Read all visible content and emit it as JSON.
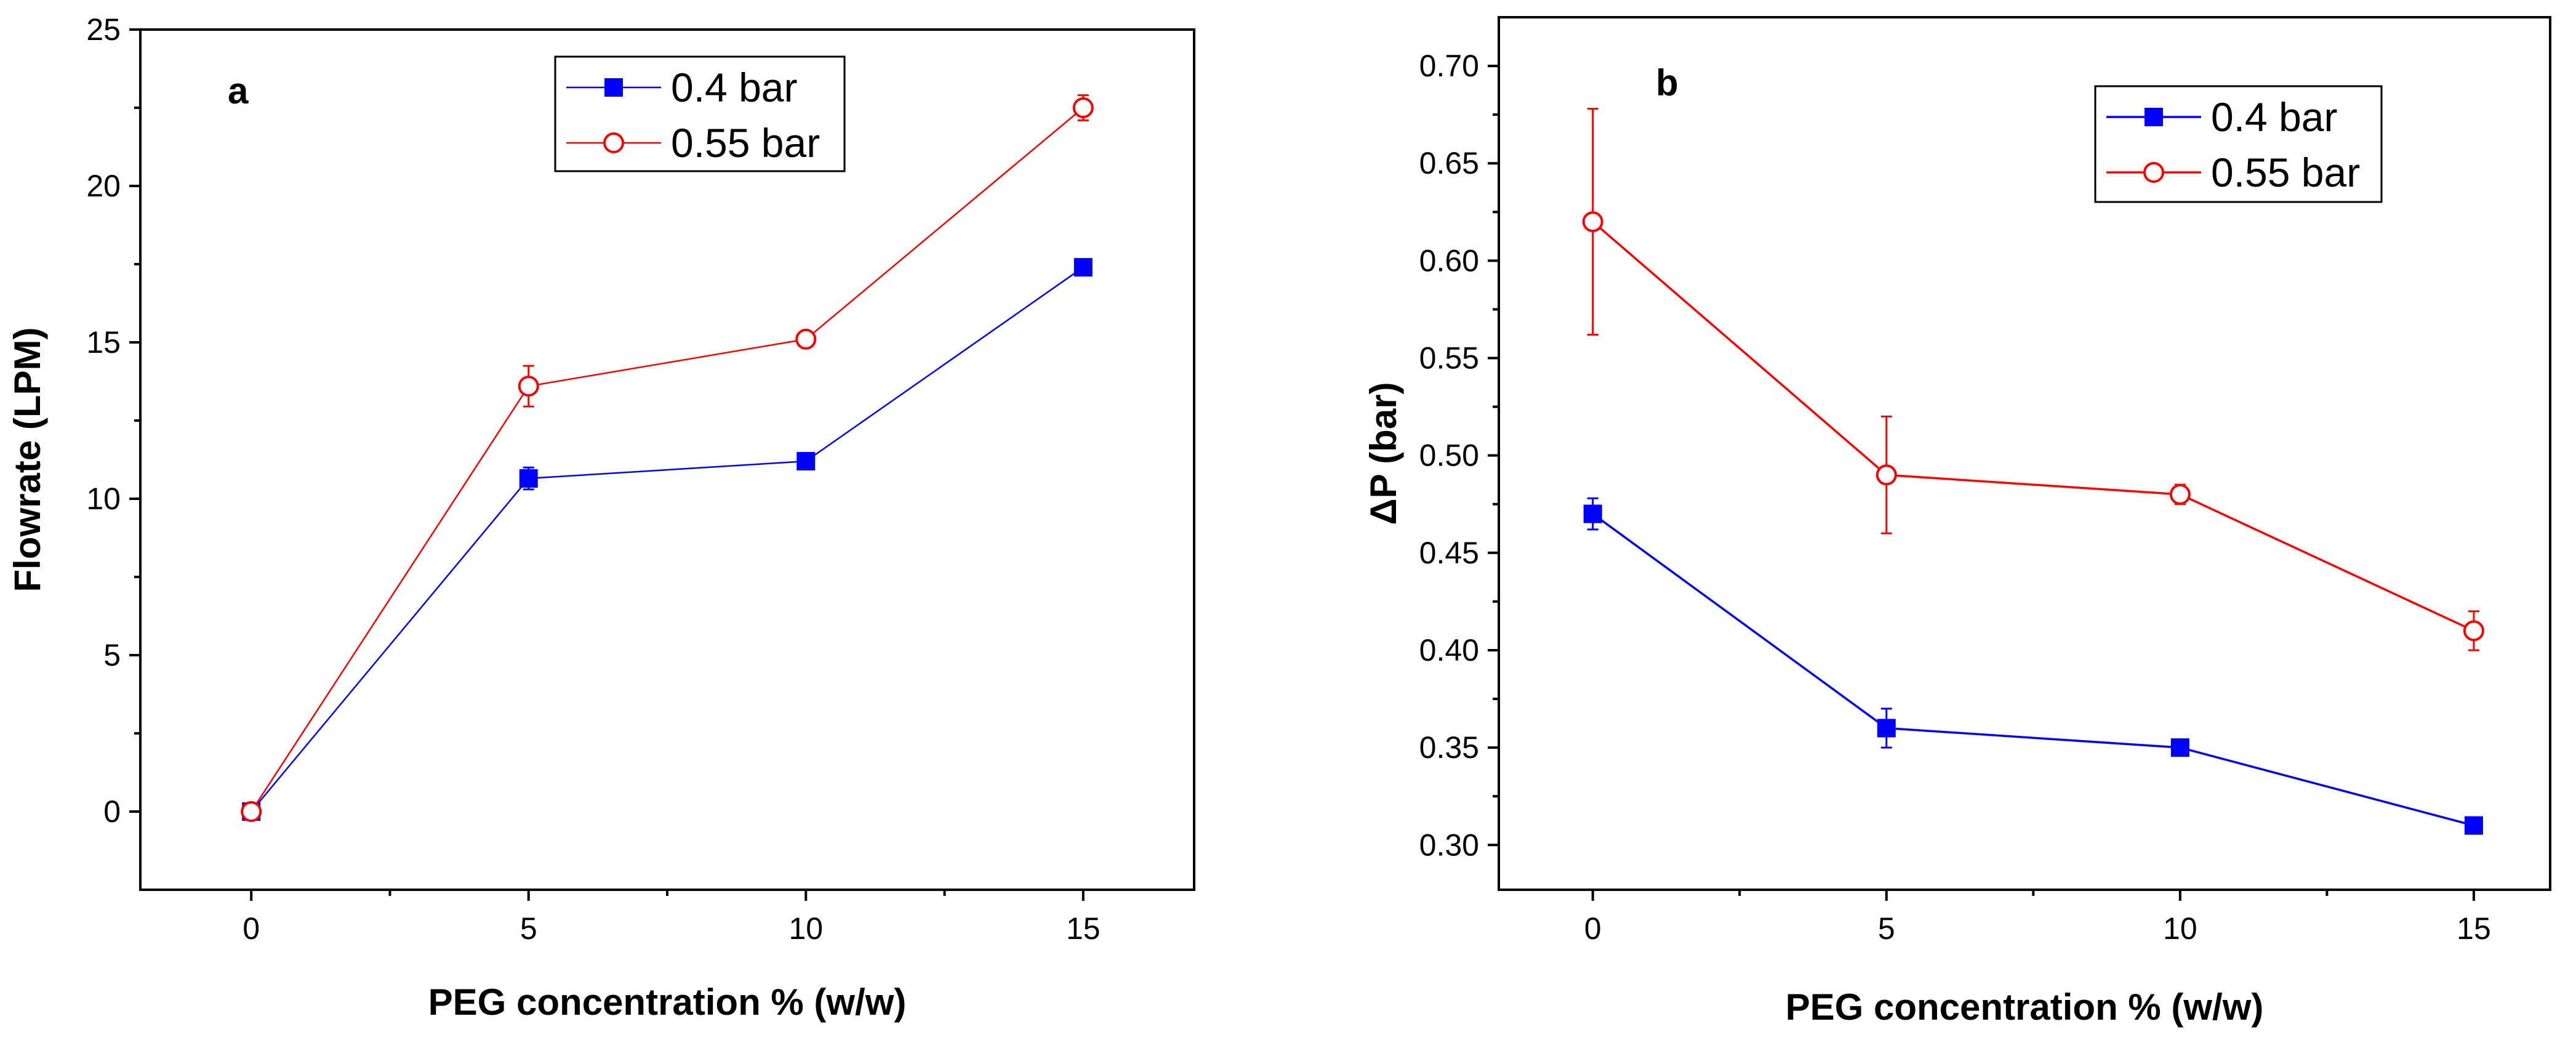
{
  "chart_data": [
    {
      "type": "line",
      "panel_label": "a",
      "xlabel": "PEG concentration % (w/w)",
      "ylabel": "Flowrate (LPM)",
      "x": [
        0,
        5,
        10,
        15
      ],
      "x_ticks": [
        "0",
        "5",
        "10",
        "15"
      ],
      "xlim": [
        -2,
        17
      ],
      "ylim": [
        -2.5,
        25
      ],
      "y_ticks": [
        "0",
        "5",
        "10",
        "15",
        "20",
        "25"
      ],
      "legend_position": "top-center",
      "series": [
        {
          "name": "0.4 bar",
          "values": [
            0,
            10.65,
            11.2,
            17.4
          ],
          "errors": [
            0.15,
            0.35,
            0.15,
            0.15
          ],
          "color": "#0000ff",
          "marker": "filled-square"
        },
        {
          "name": "0.55 bar",
          "values": [
            0,
            13.6,
            15.1,
            22.5
          ],
          "errors": [
            0.15,
            0.65,
            0.15,
            0.4
          ],
          "color": "#ff0000",
          "marker": "open-circle"
        }
      ]
    },
    {
      "type": "line",
      "panel_label": "b",
      "xlabel": "PEG concentration % (w/w)",
      "ylabel": "ΔP (bar)",
      "x": [
        0,
        5,
        10,
        15
      ],
      "x_ticks": [
        "0",
        "5",
        "10",
        "15"
      ],
      "xlim": [
        -1.6,
        16.3
      ],
      "ylim": [
        0.277,
        0.725
      ],
      "y_ticks": [
        "0.30",
        "0.35",
        "0.40",
        "0.45",
        "0.50",
        "0.55",
        "0.60",
        "0.65",
        "0.70"
      ],
      "legend_position": "top-right",
      "series": [
        {
          "name": "0.4 bar",
          "values": [
            0.47,
            0.36,
            0.35,
            0.31
          ],
          "errors": [
            0.008,
            0.01,
            0.002,
            0.002
          ],
          "color": "#0000ff",
          "marker": "filled-square"
        },
        {
          "name": "0.55 bar",
          "values": [
            0.62,
            0.49,
            0.48,
            0.41
          ],
          "errors": [
            0.058,
            0.03,
            0.005,
            0.01
          ],
          "color": "#ff0000",
          "marker": "open-circle"
        }
      ]
    }
  ]
}
